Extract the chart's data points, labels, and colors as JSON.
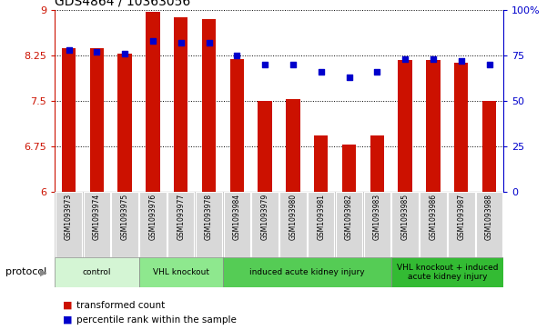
{
  "title": "GDS4864 / 10363056",
  "samples": [
    "GSM1093973",
    "GSM1093974",
    "GSM1093975",
    "GSM1093976",
    "GSM1093977",
    "GSM1093978",
    "GSM1093984",
    "GSM1093979",
    "GSM1093980",
    "GSM1093981",
    "GSM1093982",
    "GSM1093983",
    "GSM1093985",
    "GSM1093986",
    "GSM1093987",
    "GSM1093988"
  ],
  "bar_values": [
    8.37,
    8.37,
    8.28,
    8.97,
    8.88,
    8.85,
    8.18,
    7.5,
    7.53,
    6.93,
    6.78,
    6.93,
    8.17,
    8.17,
    8.13,
    7.5
  ],
  "dot_values": [
    78,
    77,
    76,
    83,
    82,
    82,
    75,
    70,
    70,
    66,
    63,
    66,
    73,
    73,
    72,
    70
  ],
  "ylim_left": [
    6,
    9
  ],
  "ylim_right": [
    0,
    100
  ],
  "yticks_left": [
    6,
    6.75,
    7.5,
    8.25,
    9
  ],
  "ytick_labels_left": [
    "6",
    "6.75",
    "7.5",
    "8.25",
    "9"
  ],
  "yticks_right": [
    0,
    25,
    50,
    75,
    100
  ],
  "ytick_labels_right": [
    "0",
    "25",
    "50",
    "75",
    "100%"
  ],
  "bar_color": "#cc1100",
  "dot_color": "#0000cc",
  "bar_bottom": 6,
  "protocols": [
    {
      "label": "control",
      "start": 0,
      "end": 3,
      "color": "#d4f5d4"
    },
    {
      "label": "VHL knockout",
      "start": 3,
      "end": 6,
      "color": "#8ee88e"
    },
    {
      "label": "induced acute kidney injury",
      "start": 6,
      "end": 12,
      "color": "#55cc55"
    },
    {
      "label": "VHL knockout + induced\nacute kidney injury",
      "start": 12,
      "end": 16,
      "color": "#33bb33"
    }
  ],
  "legend_items": [
    {
      "label": "transformed count",
      "color": "#cc1100"
    },
    {
      "label": "percentile rank within the sample",
      "color": "#0000cc"
    }
  ],
  "protocol_label": "protocol",
  "tick_label_color_left": "#cc1100",
  "tick_label_color_right": "#0000cc"
}
